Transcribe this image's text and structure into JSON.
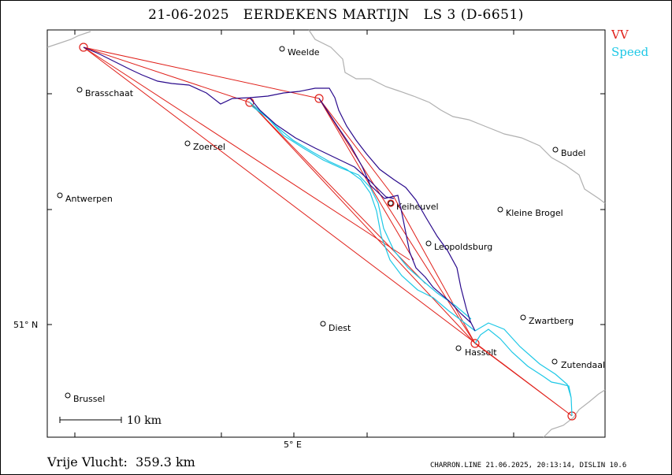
{
  "header": {
    "date": "21-06-2025",
    "pilot": "EERDEKENS MARTIJN",
    "class_glider": "LS 3 (D-6651)"
  },
  "legend": {
    "vv": "VV",
    "speed": "Speed"
  },
  "colors": {
    "vv": "#e0201a",
    "speed": "#1ec8e6",
    "track": "#2a0a8c",
    "border": "#b0b0b0"
  },
  "places": [
    {
      "name": "Weelde"
    },
    {
      "name": "Brasschaat"
    },
    {
      "name": "Zoersel"
    },
    {
      "name": "Budel"
    },
    {
      "name": "Antwerpen"
    },
    {
      "name": "Keiheuvel"
    },
    {
      "name": "Kleine Brogel"
    },
    {
      "name": "Leopoldsburg"
    },
    {
      "name": "Zwartberg"
    },
    {
      "name": "Diest"
    },
    {
      "name": "Hasselt"
    },
    {
      "name": "Zutendaal"
    },
    {
      "name": "Brussel"
    }
  ],
  "axes": {
    "lat_label": "51° N",
    "lon_label": "5° E"
  },
  "scale_bar": {
    "label": "10  km"
  },
  "distance": {
    "label": "Vrije Vlucht:",
    "value": "359.3 km"
  },
  "footer": "CHARRON.LINE 21.06.2025, 20:13:14, DISLIN 10.6"
}
